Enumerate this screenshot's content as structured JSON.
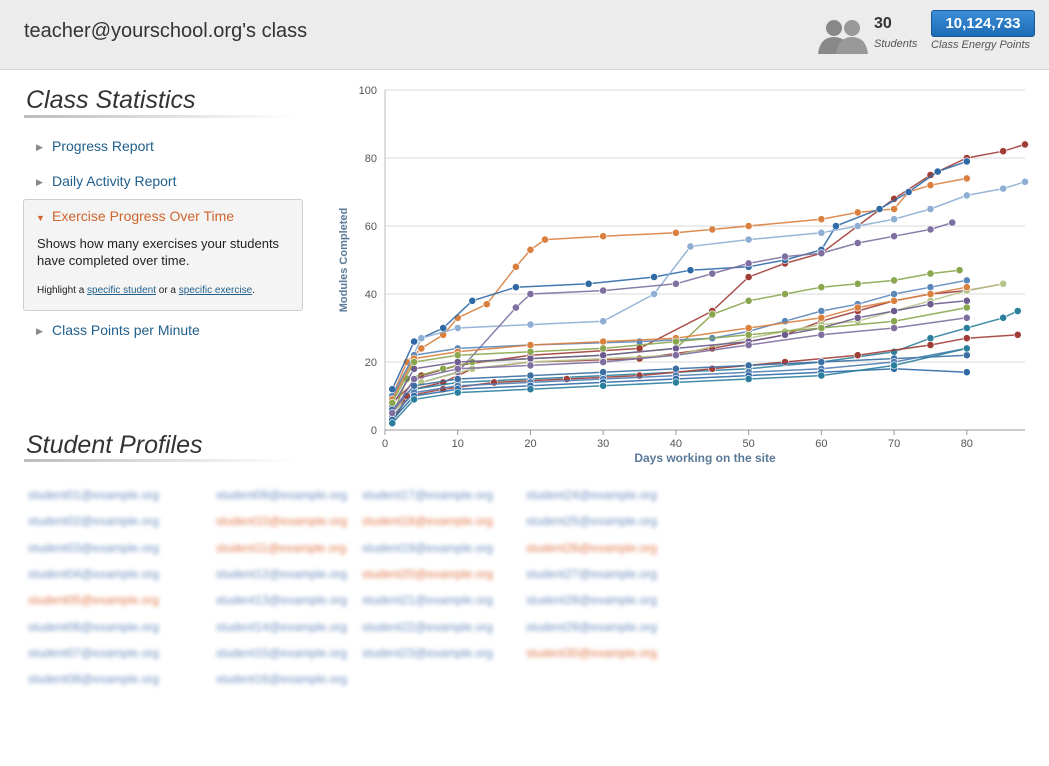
{
  "header": {
    "class_title": "teacher@yourschool.org's class",
    "students_count": "30",
    "students_label": "Students",
    "energy_points": "10,124,733",
    "energy_points_label": "Class Energy Points"
  },
  "sidebar": {
    "heading": "Class Statistics",
    "items": [
      {
        "label": "Progress Report"
      },
      {
        "label": "Daily Activity Report"
      },
      {
        "label": "Class Points per Minute"
      }
    ],
    "active": {
      "label": "Exercise Progress Over Time",
      "description": "Shows how many exercises your students have completed over time.",
      "hint_prefix": "Highlight a",
      "hint_link1": "specific student",
      "hint_mid": "or a",
      "hint_link2": "specific exercise",
      "hint_suffix": "."
    }
  },
  "profiles": {
    "heading": "Student Profiles",
    "columns": [
      [
        "student01@example.org",
        "student02@example.org",
        "student03@example.org",
        "student04@example.org",
        "student05@example.org",
        "student06@example.org",
        "student07@example.org",
        "student08@example.org"
      ],
      [
        "student09@example.org",
        "student10@example.org",
        "student11@example.org",
        "student12@example.org",
        "student13@example.org",
        "student14@example.org",
        "student15@example.org",
        "student16@example.org"
      ],
      [
        "student17@example.org",
        "student18@example.org",
        "student19@example.org",
        "student20@example.org",
        "student21@example.org",
        "student22@example.org",
        "student23@example.org"
      ],
      [
        "student24@example.org",
        "student25@example.org",
        "student26@example.org",
        "student27@example.org",
        "student28@example.org",
        "student29@example.org",
        "student30@example.org"
      ]
    ],
    "highlighted": [
      [
        false,
        false,
        false,
        false,
        true,
        false,
        false,
        false
      ],
      [
        false,
        true,
        true,
        false,
        false,
        false,
        false,
        false
      ],
      [
        false,
        true,
        false,
        true,
        false,
        false,
        false
      ],
      [
        false,
        false,
        true,
        false,
        false,
        false,
        true
      ]
    ],
    "colors": {
      "normal": "#6d8fbf",
      "highlighted": "#e0794a"
    }
  },
  "chart_data": {
    "type": "line",
    "xlabel": "Days working on the site",
    "ylabel": "Modules Completed",
    "xlim": [
      0,
      88
    ],
    "ylim": [
      0,
      100
    ],
    "xticks": [
      0,
      10,
      20,
      30,
      40,
      50,
      60,
      70,
      80
    ],
    "yticks": [
      0,
      20,
      40,
      60,
      80,
      100
    ],
    "grid": true,
    "series": [
      {
        "color": "#d9803f",
        "points": [
          [
            1,
            10
          ],
          [
            3,
            20
          ],
          [
            5,
            24
          ],
          [
            8,
            28
          ],
          [
            10,
            33
          ],
          [
            14,
            37
          ],
          [
            18,
            48
          ],
          [
            20,
            53
          ],
          [
            22,
            56
          ],
          [
            30,
            57
          ],
          [
            40,
            58
          ],
          [
            45,
            59
          ],
          [
            50,
            60
          ],
          [
            60,
            62
          ],
          [
            65,
            64
          ],
          [
            70,
            65
          ],
          [
            72,
            70
          ],
          [
            75,
            72
          ],
          [
            80,
            74
          ]
        ]
      },
      {
        "color": "#a13d37",
        "points": [
          [
            1,
            5
          ],
          [
            4,
            12
          ],
          [
            8,
            14
          ],
          [
            12,
            18
          ],
          [
            20,
            20
          ],
          [
            35,
            21
          ],
          [
            45,
            24
          ],
          [
            55,
            28
          ],
          [
            60,
            32
          ],
          [
            65,
            35
          ],
          [
            70,
            38
          ],
          [
            75,
            40
          ],
          [
            80,
            41
          ],
          [
            85,
            43
          ]
        ]
      },
      {
        "color": "#a13d37",
        "points": [
          [
            1,
            8
          ],
          [
            5,
            16
          ],
          [
            10,
            19
          ],
          [
            20,
            22
          ],
          [
            35,
            24
          ],
          [
            45,
            35
          ],
          [
            50,
            45
          ],
          [
            55,
            49
          ],
          [
            60,
            52
          ],
          [
            65,
            60
          ],
          [
            70,
            68
          ],
          [
            75,
            75
          ],
          [
            80,
            80
          ],
          [
            85,
            82
          ],
          [
            88,
            84
          ]
        ]
      },
      {
        "color": "#2f6aa6",
        "points": [
          [
            1,
            12
          ],
          [
            4,
            26
          ],
          [
            8,
            30
          ],
          [
            12,
            38
          ],
          [
            18,
            42
          ],
          [
            28,
            43
          ],
          [
            37,
            45
          ],
          [
            42,
            47
          ],
          [
            50,
            48
          ],
          [
            55,
            50
          ],
          [
            60,
            53
          ],
          [
            62,
            60
          ],
          [
            68,
            65
          ],
          [
            72,
            70
          ],
          [
            76,
            76
          ],
          [
            80,
            79
          ]
        ]
      },
      {
        "color": "#8eaed4",
        "points": [
          [
            1,
            9
          ],
          [
            5,
            27
          ],
          [
            10,
            30
          ],
          [
            20,
            31
          ],
          [
            30,
            32
          ],
          [
            37,
            40
          ],
          [
            42,
            54
          ],
          [
            50,
            56
          ],
          [
            60,
            58
          ],
          [
            65,
            60
          ],
          [
            70,
            62
          ],
          [
            75,
            65
          ],
          [
            80,
            69
          ],
          [
            85,
            71
          ],
          [
            88,
            73
          ]
        ]
      },
      {
        "color": "#7e6fa0",
        "points": [
          [
            1,
            6
          ],
          [
            5,
            14
          ],
          [
            10,
            17
          ],
          [
            18,
            36
          ],
          [
            20,
            40
          ],
          [
            30,
            41
          ],
          [
            40,
            43
          ],
          [
            45,
            46
          ],
          [
            50,
            49
          ],
          [
            55,
            51
          ],
          [
            60,
            52
          ],
          [
            65,
            55
          ],
          [
            70,
            57
          ],
          [
            75,
            59
          ],
          [
            78,
            61
          ]
        ]
      },
      {
        "color": "#8aa64e",
        "points": [
          [
            1,
            4
          ],
          [
            3,
            15
          ],
          [
            8,
            18
          ],
          [
            12,
            20
          ],
          [
            20,
            21
          ],
          [
            30,
            22
          ],
          [
            40,
            24
          ],
          [
            45,
            34
          ],
          [
            50,
            38
          ],
          [
            55,
            40
          ],
          [
            60,
            42
          ],
          [
            65,
            43
          ],
          [
            70,
            44
          ],
          [
            75,
            46
          ],
          [
            79,
            47
          ]
        ]
      },
      {
        "color": "#2c7f9c",
        "points": [
          [
            1,
            3
          ],
          [
            4,
            12
          ],
          [
            10,
            14
          ],
          [
            20,
            15
          ],
          [
            30,
            16
          ],
          [
            40,
            17
          ],
          [
            50,
            18
          ],
          [
            60,
            20
          ],
          [
            70,
            23
          ],
          [
            75,
            27
          ],
          [
            80,
            30
          ],
          [
            85,
            33
          ],
          [
            87,
            35
          ]
        ]
      },
      {
        "color": "#b6c48a",
        "points": [
          [
            1,
            5
          ],
          [
            5,
            14
          ],
          [
            12,
            18
          ],
          [
            20,
            20
          ],
          [
            30,
            21
          ],
          [
            40,
            22
          ],
          [
            50,
            27
          ],
          [
            55,
            29
          ],
          [
            60,
            31
          ],
          [
            65,
            32
          ],
          [
            70,
            35
          ],
          [
            75,
            38
          ],
          [
            80,
            41
          ],
          [
            85,
            43
          ]
        ]
      },
      {
        "color": "#a13d37",
        "points": [
          [
            1,
            2
          ],
          [
            3,
            10
          ],
          [
            8,
            12
          ],
          [
            15,
            14
          ],
          [
            25,
            15
          ],
          [
            35,
            16
          ],
          [
            45,
            18
          ],
          [
            55,
            20
          ],
          [
            65,
            22
          ],
          [
            75,
            25
          ],
          [
            80,
            27
          ],
          [
            87,
            28
          ]
        ]
      },
      {
        "color": "#6d5b8f",
        "points": [
          [
            1,
            7
          ],
          [
            4,
            18
          ],
          [
            10,
            20
          ],
          [
            20,
            21
          ],
          [
            30,
            22
          ],
          [
            40,
            24
          ],
          [
            50,
            26
          ],
          [
            55,
            28
          ],
          [
            60,
            30
          ],
          [
            65,
            33
          ],
          [
            70,
            35
          ],
          [
            75,
            37
          ],
          [
            80,
            38
          ]
        ]
      },
      {
        "color": "#5b86b9",
        "points": [
          [
            1,
            10
          ],
          [
            4,
            22
          ],
          [
            10,
            24
          ],
          [
            20,
            25
          ],
          [
            35,
            26
          ],
          [
            45,
            27
          ],
          [
            50,
            29
          ],
          [
            55,
            32
          ],
          [
            60,
            35
          ],
          [
            65,
            37
          ],
          [
            70,
            40
          ],
          [
            75,
            42
          ],
          [
            80,
            44
          ]
        ]
      },
      {
        "color": "#3b6fa4",
        "points": [
          [
            1,
            6
          ],
          [
            4,
            13
          ],
          [
            10,
            15
          ],
          [
            20,
            16
          ],
          [
            30,
            17
          ],
          [
            40,
            18
          ],
          [
            50,
            19
          ],
          [
            60,
            20
          ],
          [
            70,
            21
          ],
          [
            80,
            22
          ]
        ]
      },
      {
        "color": "#4f7db2",
        "points": [
          [
            1,
            4
          ],
          [
            4,
            11
          ],
          [
            10,
            13
          ],
          [
            20,
            14
          ],
          [
            30,
            15
          ],
          [
            40,
            16
          ],
          [
            50,
            17
          ],
          [
            60,
            18
          ],
          [
            70,
            20
          ],
          [
            80,
            24
          ]
        ]
      },
      {
        "color": "#2f6aa6",
        "points": [
          [
            1,
            3
          ],
          [
            4,
            10
          ],
          [
            10,
            12
          ],
          [
            20,
            13
          ],
          [
            30,
            14
          ],
          [
            40,
            15
          ],
          [
            50,
            16
          ],
          [
            60,
            17
          ],
          [
            70,
            18
          ],
          [
            80,
            17
          ]
        ]
      },
      {
        "color": "#d9803f",
        "points": [
          [
            1,
            9
          ],
          [
            4,
            21
          ],
          [
            10,
            23
          ],
          [
            20,
            25
          ],
          [
            30,
            26
          ],
          [
            40,
            27
          ],
          [
            50,
            30
          ],
          [
            60,
            33
          ],
          [
            65,
            36
          ],
          [
            70,
            38
          ],
          [
            75,
            40
          ],
          [
            80,
            42
          ]
        ]
      },
      {
        "color": "#7e6fa0",
        "points": [
          [
            1,
            5
          ],
          [
            4,
            15
          ],
          [
            10,
            18
          ],
          [
            20,
            19
          ],
          [
            30,
            20
          ],
          [
            40,
            22
          ],
          [
            50,
            25
          ],
          [
            60,
            28
          ],
          [
            70,
            30
          ],
          [
            80,
            33
          ]
        ]
      },
      {
        "color": "#2c7f9c",
        "points": [
          [
            1,
            2
          ],
          [
            4,
            9
          ],
          [
            10,
            11
          ],
          [
            20,
            12
          ],
          [
            30,
            13
          ],
          [
            40,
            14
          ],
          [
            50,
            15
          ],
          [
            60,
            16
          ],
          [
            70,
            19
          ],
          [
            80,
            24
          ]
        ]
      },
      {
        "color": "#8aa64e",
        "points": [
          [
            1,
            8
          ],
          [
            4,
            20
          ],
          [
            10,
            22
          ],
          [
            20,
            23
          ],
          [
            30,
            24
          ],
          [
            40,
            26
          ],
          [
            50,
            28
          ],
          [
            60,
            30
          ],
          [
            70,
            32
          ],
          [
            80,
            36
          ]
        ]
      }
    ]
  }
}
